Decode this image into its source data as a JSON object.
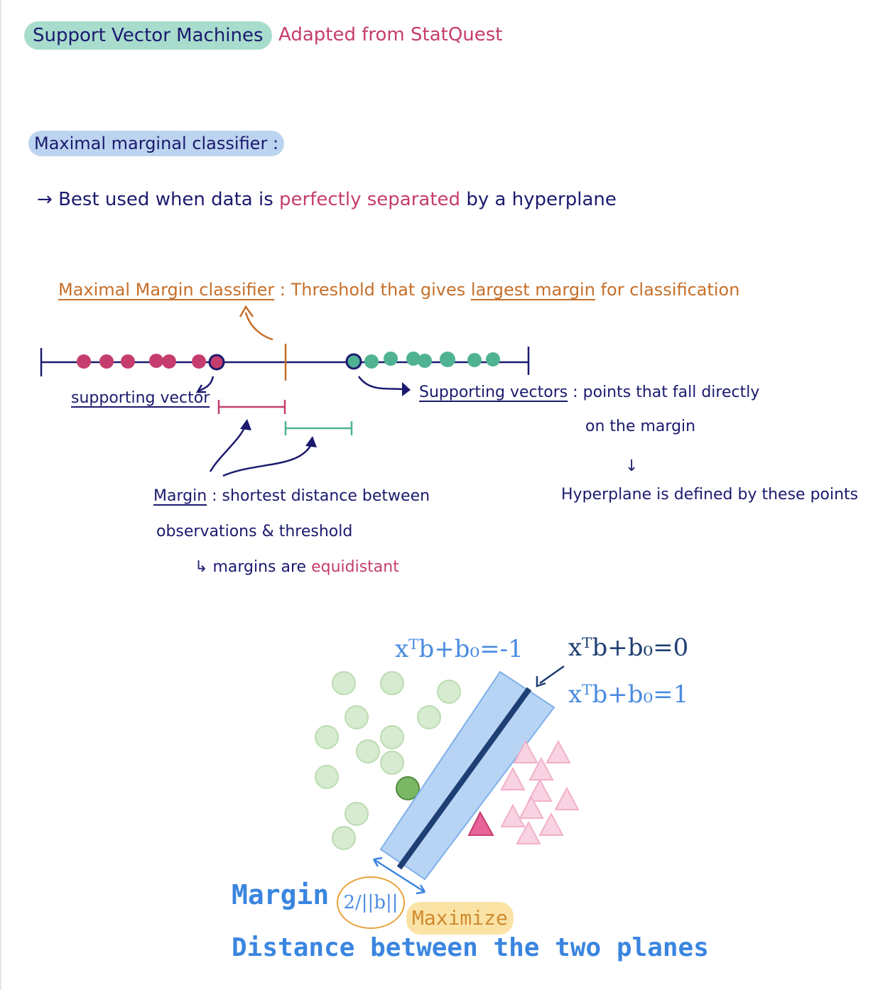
{
  "title": "Support Vector Machines",
  "subtitle": "Adapted from StatQuest",
  "section_heading": "Maximal marginal classifier :",
  "bullet": {
    "arrow": "→",
    "text_1": "Best used when data is",
    "highlight": "perfectly separated",
    "text_2": "by a hyperplane"
  },
  "definition": {
    "term": "Maximal Margin classifier",
    "text_1": ": Threshold that gives",
    "highlight": "largest margin",
    "text_2": "for classification"
  },
  "annotations": {
    "supporting_vector": "supporting vector",
    "supporting_vectors": "Supporting vectors",
    "supporting_vectors_def_1": ": points that fall directly",
    "supporting_vectors_def_2": "on the margin",
    "arrow_down": "↓",
    "hyperplane_note": "Hyperplane is defined by these points",
    "margin_term": "Margin",
    "margin_def_1": ": shortest distance between",
    "margin_def_2": "observations & threshold",
    "hook_arrow": "↳",
    "equidistant_1": "margins are",
    "equidistant_2": "equidistant"
  },
  "diagram": {
    "formula_left": "xᵀb+b₀=-1",
    "formula_center": "xᵀb+b₀=0",
    "formula_right": "xᵀb+b₀=1",
    "margin_label": "Margin",
    "margin_formula": "2/||b||",
    "maximize": "Maximize",
    "distance_label": "Distance between the two planes"
  },
  "colors": {
    "navy": "#1b1a6e",
    "pink": "#c53d6e",
    "teal": "#4fb393",
    "orange": "#c56f2a",
    "blue": "#3a85e0"
  }
}
